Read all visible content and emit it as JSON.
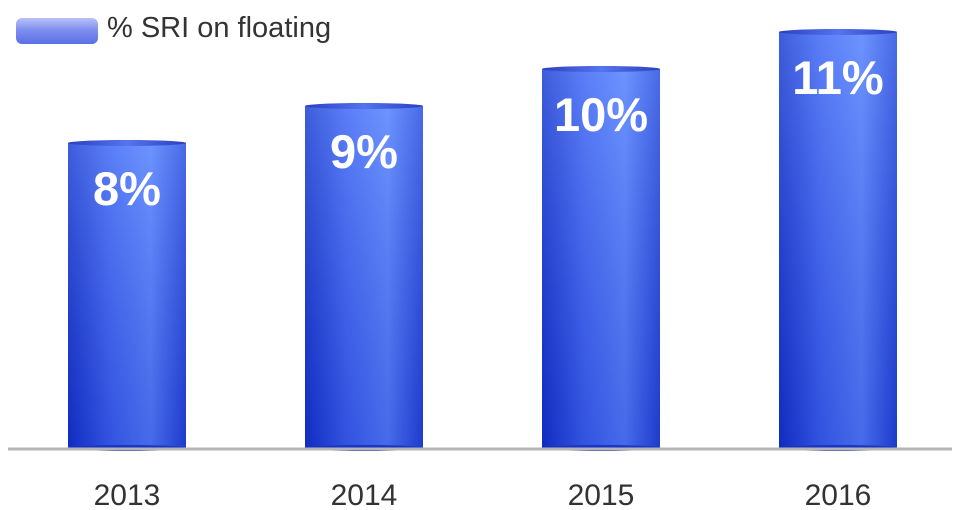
{
  "chart_data": {
    "type": "bar",
    "categories": [
      "2013",
      "2014",
      "2015",
      "2016"
    ],
    "series": [
      {
        "name": "% SRI on floating",
        "values": [
          8,
          9,
          10,
          11
        ],
        "data_labels": [
          "8%",
          "9%",
          "10%",
          "11%"
        ]
      }
    ],
    "title": "",
    "xlabel": "",
    "ylabel": "",
    "ylim": [
      0,
      12
    ],
    "legend": "top-left",
    "grid": false,
    "colors": {
      "bar_dark": "#1c3fd9",
      "bar_light": "#6f98ff",
      "baseline": "#b5b5b5"
    }
  }
}
